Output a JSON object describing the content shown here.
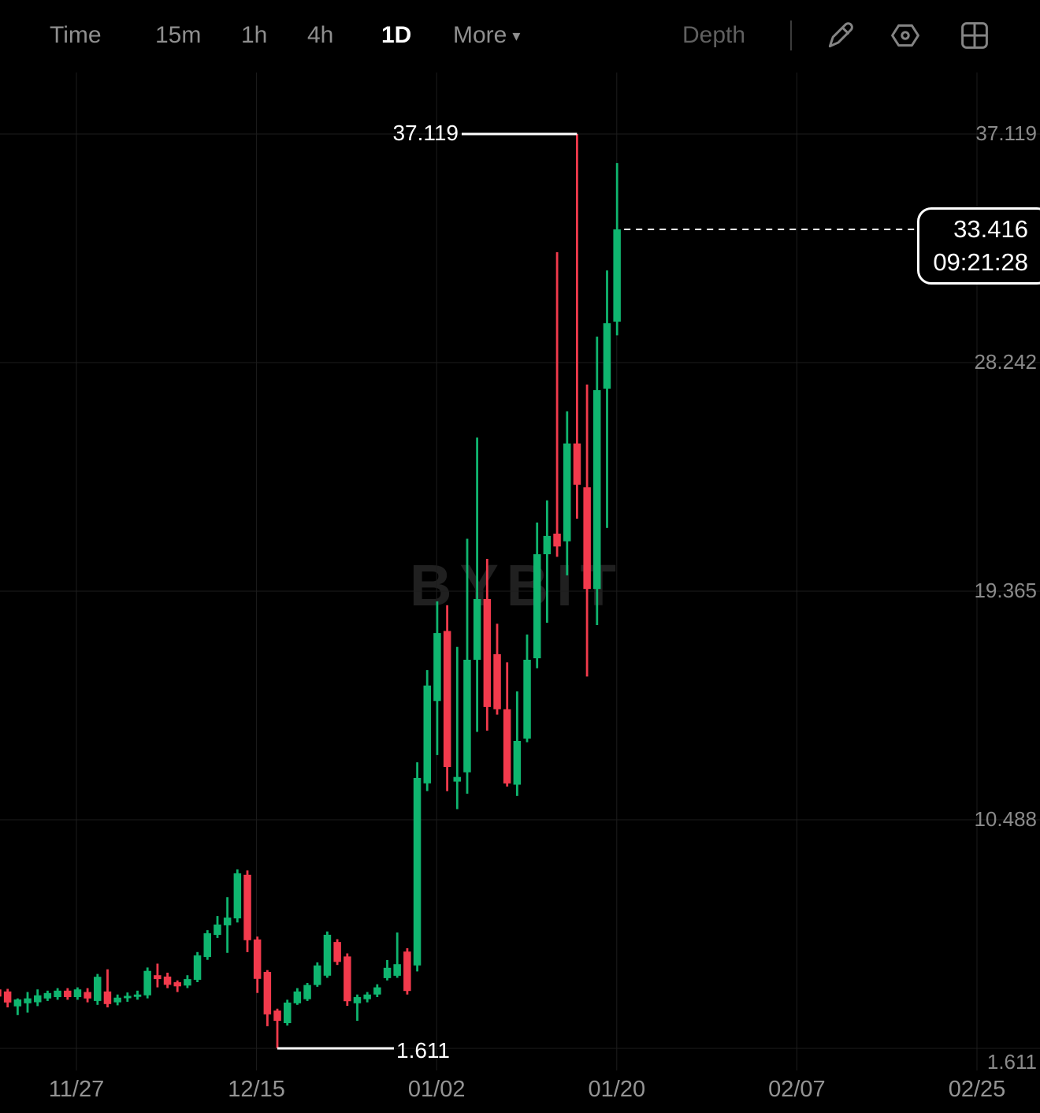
{
  "toolbar": {
    "intervals": [
      {
        "label": "Time",
        "active": false
      },
      {
        "label": "15m",
        "active": false
      },
      {
        "label": "1h",
        "active": false
      },
      {
        "label": "4h",
        "active": false
      },
      {
        "label": "1D",
        "active": true
      }
    ],
    "more_label": "More",
    "depth_label": "Depth",
    "icons": [
      "draw-pencil-icon",
      "indicator-hexagon-icon",
      "layout-grid-icon"
    ]
  },
  "chart": {
    "watermark": "BYBIT",
    "colors": {
      "up": "#0fb56f",
      "down": "#f23a4c",
      "grid": "#1d1d1d",
      "axis_text": "#8a8a8a",
      "annotation": "#ffffff",
      "background": "#000000"
    },
    "y_axis": {
      "labels": [
        "37.119",
        "28.242",
        "19.365",
        "10.488",
        "1.611"
      ]
    },
    "x_axis": {
      "labels": [
        "11/27",
        "12/15",
        "01/02",
        "01/20",
        "02/07",
        "02/25"
      ]
    },
    "annotations": {
      "high_label": "37.119",
      "low_label": "1.611"
    },
    "price_tag": {
      "price": "33.416",
      "time": "09:21:28"
    }
  },
  "chart_data": {
    "type": "candlestick",
    "timeframe": "1D",
    "grid": "on",
    "y_ticks": [
      37.119,
      28.242,
      19.365,
      10.488,
      1.611
    ],
    "x_ticks": [
      "11/27",
      "12/15",
      "01/02",
      "01/20",
      "02/07",
      "02/25"
    ],
    "high": 37.119,
    "low": 1.611,
    "last_price": 33.416,
    "last_time": "09:21:28",
    "columns": [
      "date",
      "open",
      "high",
      "low",
      "close"
    ],
    "rows": [
      [
        "11/19",
        3.9,
        3.95,
        3.55,
        3.62
      ],
      [
        "11/20",
        3.82,
        3.92,
        3.2,
        3.39
      ],
      [
        "11/21",
        3.24,
        3.55,
        2.9,
        3.51
      ],
      [
        "11/22",
        3.36,
        3.8,
        3.0,
        3.55
      ],
      [
        "11/23",
        3.4,
        3.9,
        3.25,
        3.67
      ],
      [
        "11/24",
        3.55,
        3.85,
        3.45,
        3.76
      ],
      [
        "11/25",
        3.6,
        3.95,
        3.5,
        3.85
      ],
      [
        "11/26",
        3.85,
        3.95,
        3.5,
        3.6
      ],
      [
        "11/27",
        3.6,
        3.98,
        3.5,
        3.9
      ],
      [
        "11/28",
        3.8,
        3.95,
        3.4,
        3.55
      ],
      [
        "11/29",
        3.45,
        4.5,
        3.3,
        4.39
      ],
      [
        "11/30",
        3.82,
        4.68,
        3.2,
        3.33
      ],
      [
        "12/01",
        3.4,
        3.7,
        3.28,
        3.58
      ],
      [
        "12/02",
        3.58,
        3.78,
        3.42,
        3.65
      ],
      [
        "12/03",
        3.62,
        3.85,
        3.5,
        3.7
      ],
      [
        "12/04",
        3.67,
        4.75,
        3.55,
        4.62
      ],
      [
        "12/05",
        4.45,
        4.9,
        3.98,
        4.3
      ],
      [
        "12/06",
        4.4,
        4.55,
        3.95,
        4.08
      ],
      [
        "12/07",
        4.18,
        4.25,
        3.8,
        4.02
      ],
      [
        "12/08",
        4.05,
        4.45,
        3.95,
        4.3
      ],
      [
        "12/09",
        4.27,
        5.35,
        4.18,
        5.22
      ],
      [
        "12/10",
        5.16,
        6.2,
        5.05,
        6.08
      ],
      [
        "12/11",
        6.02,
        6.75,
        5.9,
        6.42
      ],
      [
        "12/12",
        6.39,
        7.48,
        5.32,
        6.69
      ],
      [
        "12/13",
        6.66,
        8.56,
        6.5,
        8.41
      ],
      [
        "12/14",
        8.35,
        8.52,
        5.35,
        5.81
      ],
      [
        "12/15",
        5.84,
        5.95,
        3.76,
        4.31
      ],
      [
        "12/16",
        4.58,
        4.65,
        2.47,
        2.93
      ],
      [
        "12/17",
        3.08,
        3.15,
        1.611,
        2.68
      ],
      [
        "12/18",
        2.59,
        3.5,
        2.5,
        3.39
      ],
      [
        "12/19",
        3.36,
        3.95,
        3.3,
        3.82
      ],
      [
        "12/20",
        3.52,
        4.15,
        3.45,
        4.07
      ],
      [
        "12/21",
        4.07,
        4.95,
        4.0,
        4.83
      ],
      [
        "12/22",
        4.43,
        6.15,
        4.35,
        6.02
      ],
      [
        "12/23",
        5.74,
        5.85,
        4.85,
        4.97
      ],
      [
        "12/24",
        5.18,
        5.3,
        3.26,
        3.44
      ],
      [
        "12/25",
        3.36,
        3.7,
        2.68,
        3.6
      ],
      [
        "12/26",
        3.52,
        3.8,
        3.4,
        3.7
      ],
      [
        "12/27",
        3.7,
        4.1,
        3.6,
        3.98
      ],
      [
        "12/28",
        4.34,
        5.04,
        4.25,
        4.74
      ],
      [
        "12/29",
        4.43,
        6.11,
        4.35,
        4.88
      ],
      [
        "12/30",
        5.37,
        5.5,
        3.7,
        3.84
      ],
      [
        "12/31",
        4.83,
        12.72,
        4.6,
        12.11
      ],
      [
        "01/01",
        11.9,
        16.3,
        11.6,
        15.7
      ],
      [
        "01/02",
        15.1,
        18.97,
        13.0,
        17.74
      ],
      [
        "01/03",
        17.82,
        18.82,
        11.6,
        12.54
      ],
      [
        "01/04",
        11.97,
        17.2,
        10.9,
        12.15
      ],
      [
        "01/05",
        12.33,
        21.4,
        11.5,
        16.7
      ],
      [
        "01/06",
        16.7,
        25.33,
        13.9,
        19.06
      ],
      [
        "01/07",
        19.06,
        20.62,
        13.95,
        14.87
      ],
      [
        "01/08",
        16.92,
        18.1,
        14.57,
        14.78
      ],
      [
        "01/09",
        14.78,
        16.6,
        11.78,
        11.9
      ],
      [
        "01/10",
        11.85,
        15.47,
        11.41,
        13.55
      ],
      [
        "01/11",
        13.64,
        17.68,
        13.5,
        16.7
      ],
      [
        "01/12",
        16.76,
        22.03,
        16.37,
        20.8
      ],
      [
        "01/13",
        20.8,
        22.89,
        18.14,
        21.51
      ],
      [
        "01/14",
        21.6,
        32.53,
        20.7,
        21.1
      ],
      [
        "01/15",
        21.3,
        26.35,
        19.98,
        25.1
      ],
      [
        "01/16",
        25.1,
        37.119,
        22.18,
        23.5
      ],
      [
        "01/17",
        23.4,
        27.39,
        16.05,
        19.45
      ],
      [
        "01/18",
        19.45,
        29.25,
        18.05,
        27.17
      ],
      [
        "01/19",
        27.23,
        31.82,
        21.82,
        29.77
      ],
      [
        "01/20",
        29.83,
        35.99,
        29.3,
        33.416
      ]
    ]
  }
}
